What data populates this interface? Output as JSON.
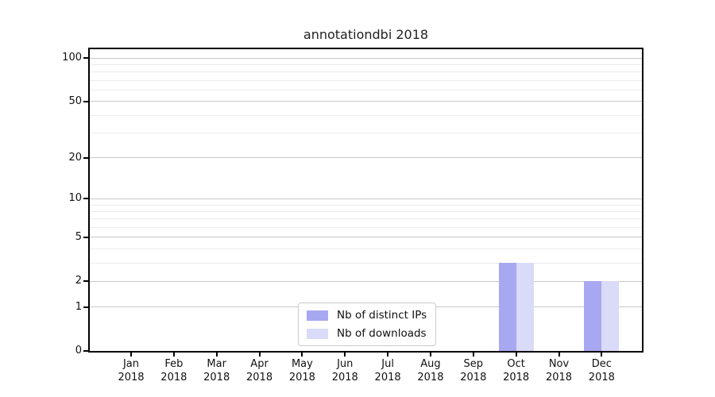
{
  "chart_data": {
    "type": "bar",
    "title": "annotationdbi 2018",
    "categories": [
      "Jan 2018",
      "Feb 2018",
      "Mar 2018",
      "Apr 2018",
      "May 2018",
      "Jun 2018",
      "Jul 2018",
      "Aug 2018",
      "Sep 2018",
      "Oct 2018",
      "Nov 2018",
      "Dec 2018"
    ],
    "month_labels": [
      "Jan",
      "Feb",
      "Mar",
      "Apr",
      "May",
      "Jun",
      "Jul",
      "Aug",
      "Sep",
      "Oct",
      "Nov",
      "Dec"
    ],
    "year_label": "2018",
    "series": [
      {
        "name": "Nb of distinct IPs",
        "color": "#a8a8f2",
        "values": [
          0,
          0,
          0,
          0,
          0,
          0,
          0,
          0,
          0,
          3,
          0,
          2
        ]
      },
      {
        "name": "Nb of downloads",
        "color": "#dadaf9",
        "values": [
          0,
          0,
          0,
          0,
          0,
          0,
          0,
          0,
          0,
          3,
          0,
          2
        ]
      }
    ],
    "xlabel": "",
    "ylabel": "",
    "yscale": "log1p",
    "yticks": [
      0,
      1,
      2,
      5,
      10,
      20,
      50,
      100
    ],
    "yticks_minor": [
      3,
      4,
      6,
      7,
      8,
      9,
      30,
      40,
      60,
      70,
      80,
      90
    ],
    "ylim": [
      0,
      118
    ],
    "grid": true,
    "legend_position": "lower center"
  },
  "colors": {
    "axis": "#000000",
    "major_grid": "#c8c8c8",
    "minor_grid": "#ececec",
    "text": "#111111",
    "background": "#ffffff"
  }
}
